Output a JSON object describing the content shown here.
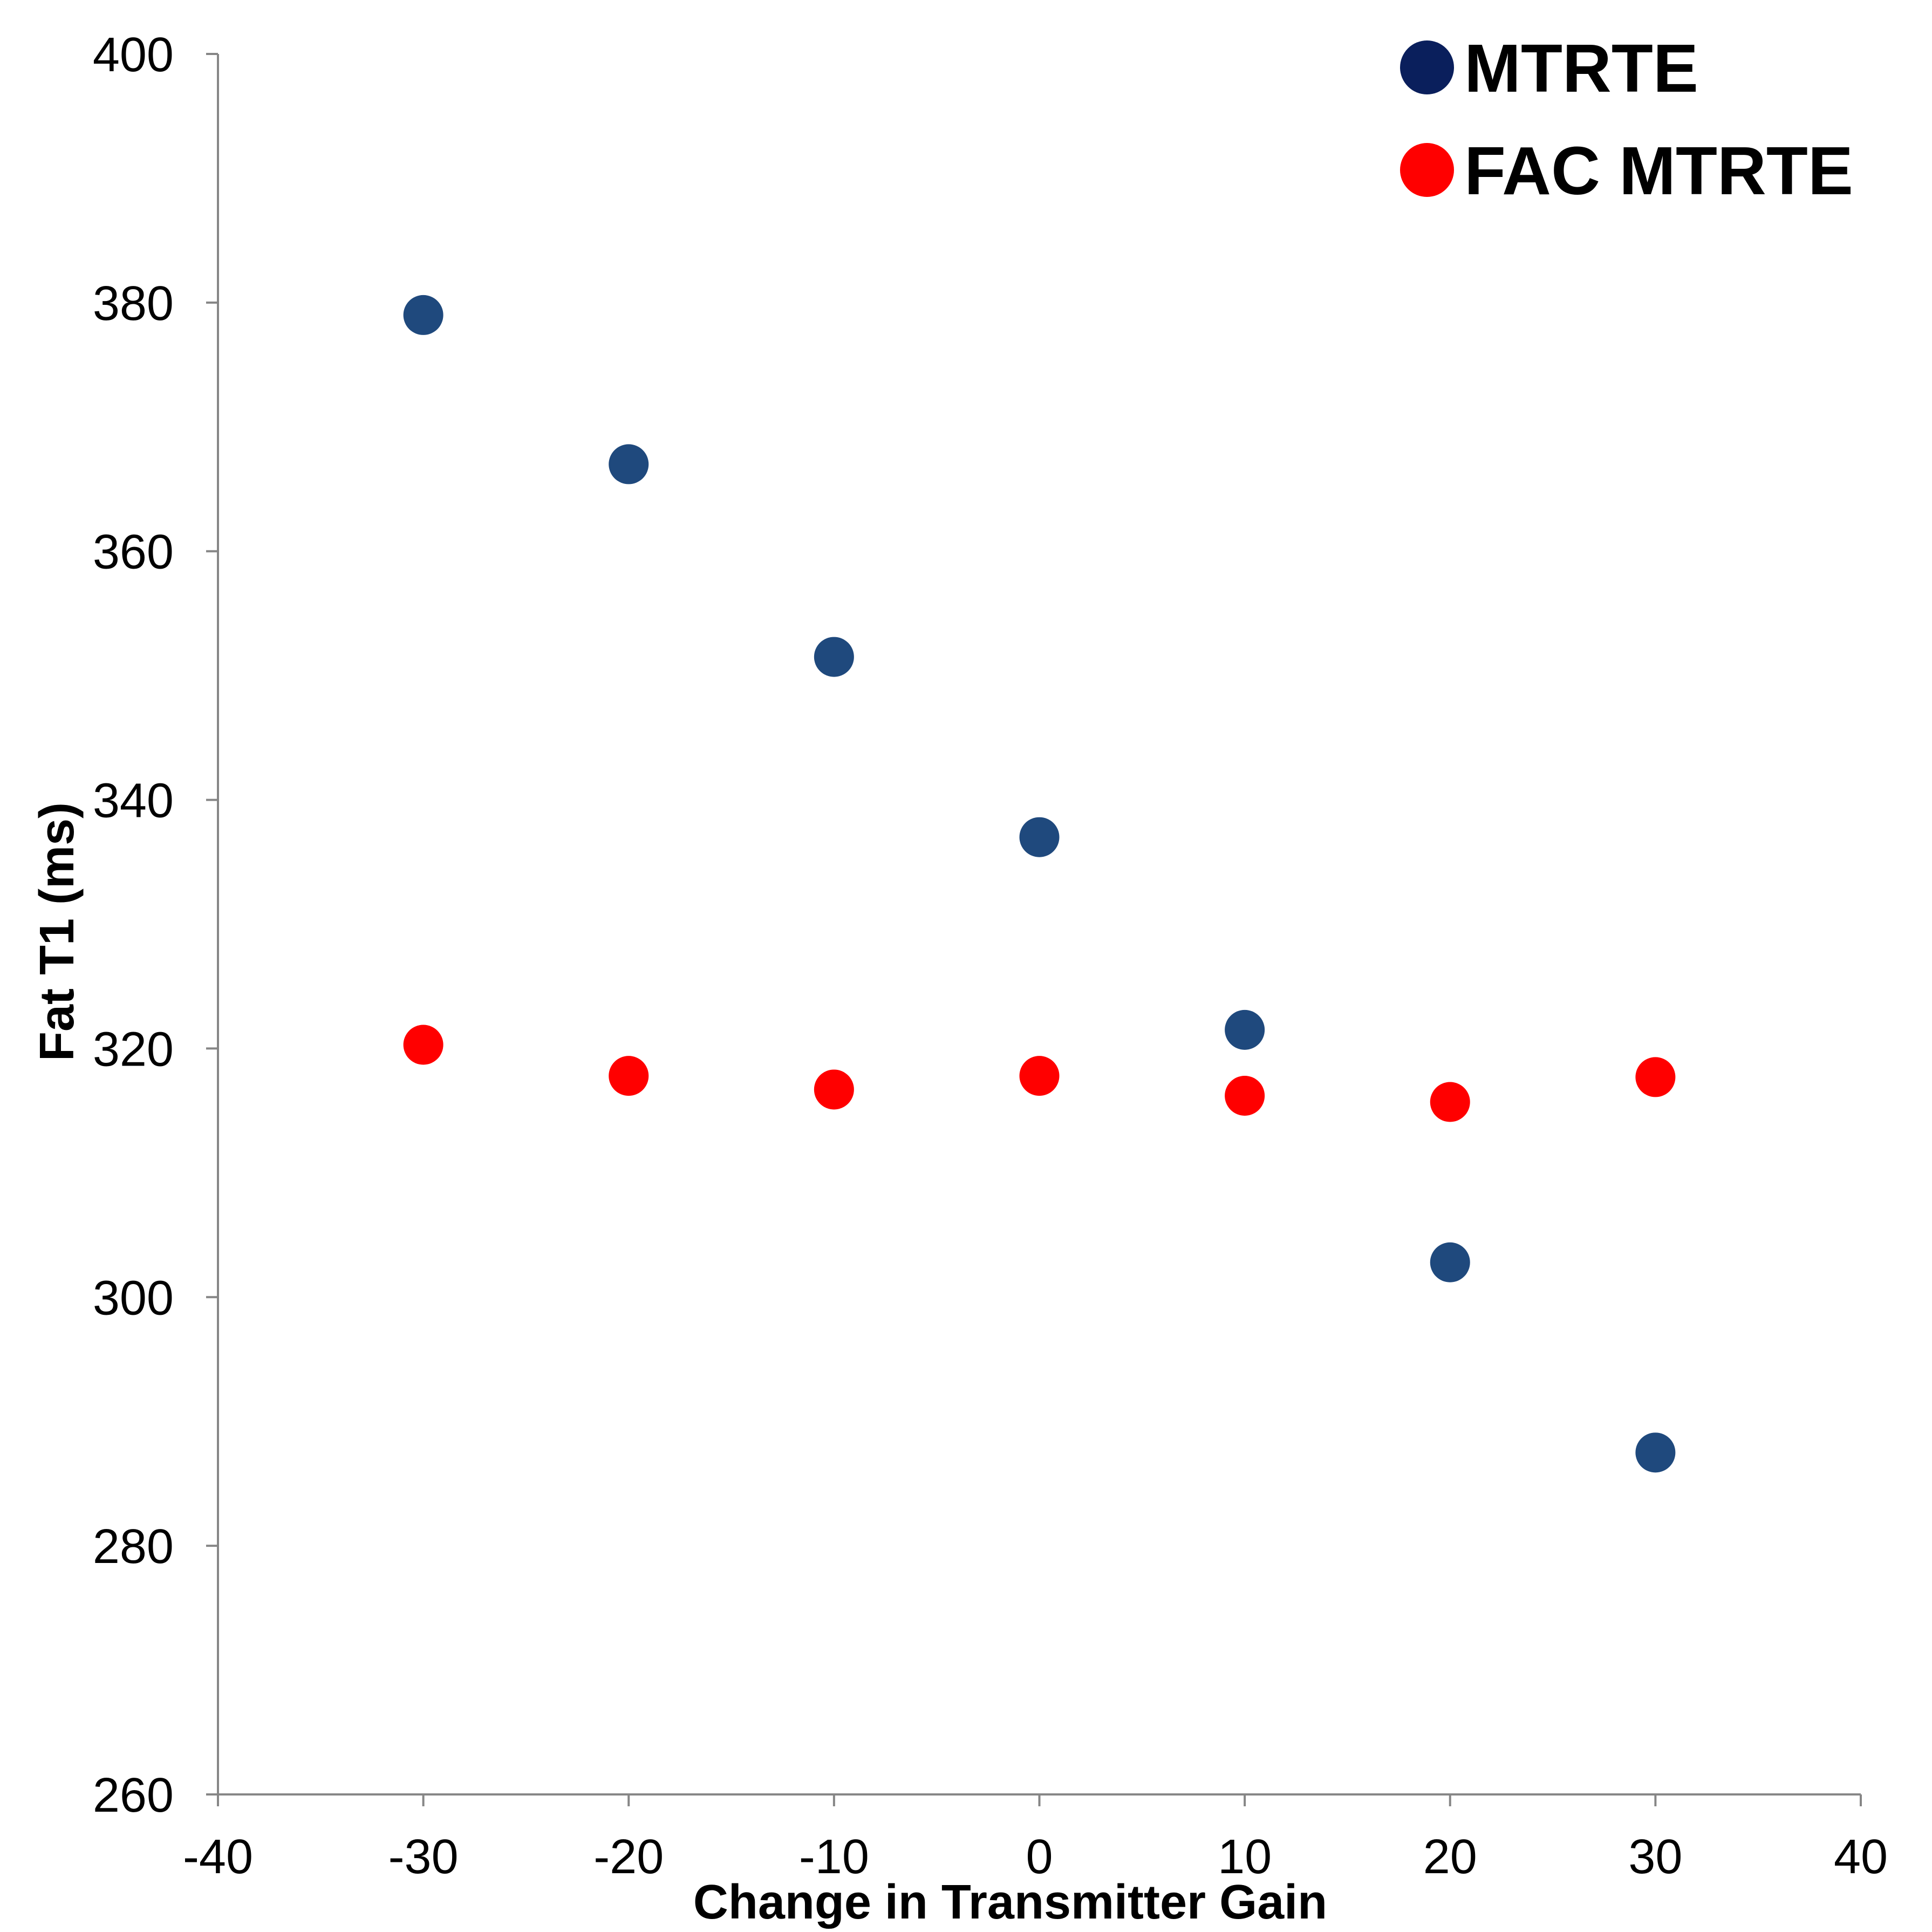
{
  "chart_data": {
    "type": "scatter",
    "title": "",
    "xlabel": "Change in Transmitter Gain",
    "ylabel": "Fat T1 (ms)",
    "xlim": [
      -40,
      40
    ],
    "ylim": [
      260,
      400
    ],
    "x_ticks": [
      -40,
      -30,
      -20,
      -10,
      0,
      10,
      20,
      30,
      40
    ],
    "y_ticks": [
      260,
      280,
      300,
      320,
      340,
      360,
      380,
      400
    ],
    "x_tick_labels": [
      "-40",
      "-30",
      "-20",
      "-10",
      "0",
      "10",
      "20",
      "30",
      "40"
    ],
    "y_tick_labels": [
      "260",
      "280",
      "300",
      "320",
      "340",
      "360",
      "380",
      "400"
    ],
    "grid": false,
    "legend_position": "top-right",
    "series": [
      {
        "name": "MTRTE",
        "color": "#1F497D",
        "legend_color": "#0A1F5C",
        "x": [
          -30,
          -20,
          -10,
          0,
          10,
          20,
          30
        ],
        "y": [
          379,
          367,
          351.5,
          337,
          321.5,
          302.8,
          287.5
        ]
      },
      {
        "name": "FAC MTRTE",
        "color": "#FF0000",
        "legend_color": "#FF0000",
        "x": [
          -30,
          -20,
          -10,
          0,
          10,
          20,
          30
        ],
        "y": [
          320.3,
          317.8,
          316.7,
          317.8,
          316.2,
          315.7,
          317.7
        ]
      }
    ]
  }
}
